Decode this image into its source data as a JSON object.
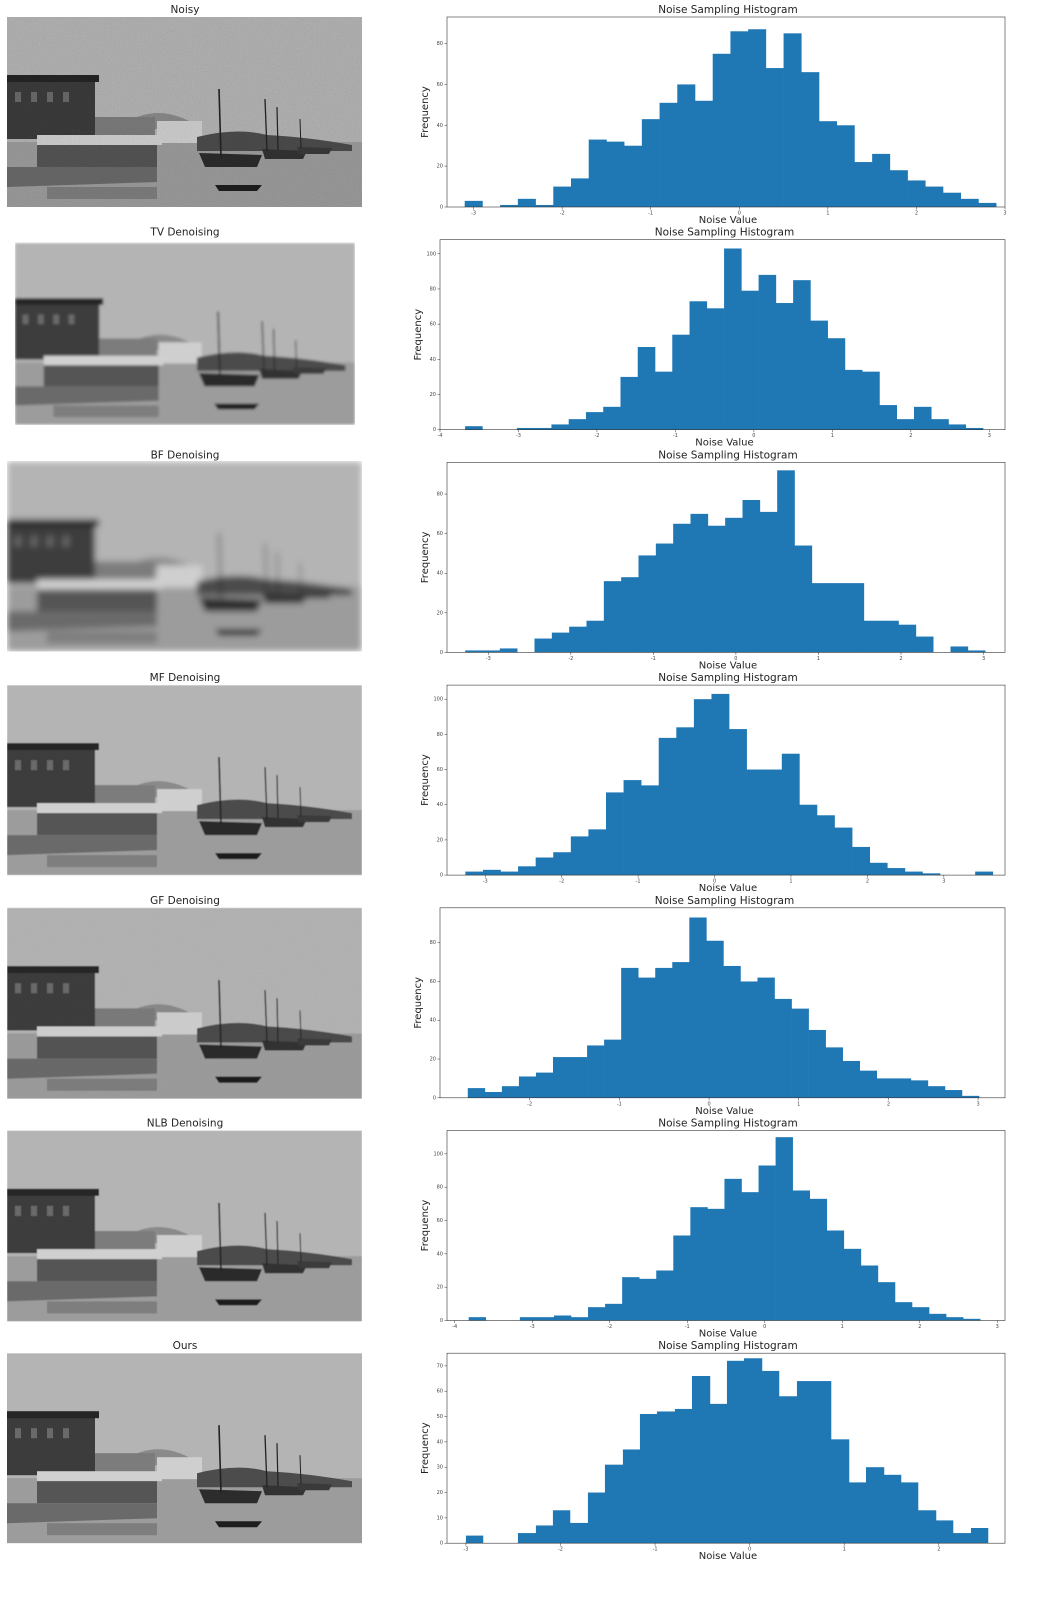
{
  "image_titles": [
    "Noisy",
    "TV Denoising",
    "BF Denoising",
    "MF Denoising",
    "GF Denoising",
    "NLB Denoising",
    "Ours"
  ],
  "chart_data": [
    {
      "type": "histogram",
      "title": "Noise Sampling Histogram",
      "xlabel": "Noise Value",
      "ylabel": "Frequency",
      "color": "#1f77b4",
      "bins": [
        -3.1,
        -2.9,
        -2.7,
        -2.5,
        -2.3,
        -2.1,
        -1.9,
        -1.7,
        -1.5,
        -1.3,
        -1.1,
        -0.9,
        -0.7,
        -0.5,
        -0.3,
        -0.1,
        0.1,
        0.3,
        0.5,
        0.7,
        0.9,
        1.1,
        1.3,
        1.5,
        1.7,
        1.9,
        2.1,
        2.3,
        2.5,
        2.7,
        2.9
      ],
      "values": [
        3,
        0,
        1,
        4,
        1,
        10,
        14,
        33,
        32,
        30,
        43,
        51,
        60,
        52,
        75,
        86,
        87,
        68,
        85,
        66,
        42,
        40,
        22,
        26,
        18,
        13,
        10,
        7,
        4,
        2
      ],
      "xlim": [
        -3.3,
        3.0
      ],
      "xticks": [
        -3,
        -2,
        -1,
        0,
        1,
        2,
        3
      ],
      "ylim": [
        0,
        93
      ],
      "yticks": [
        0,
        20,
        40,
        60,
        80
      ]
    },
    {
      "type": "histogram",
      "title": "Noise Sampling Histogram",
      "xlabel": "Noise Value",
      "ylabel": "Frequency",
      "color": "#1f77b4",
      "bins": [
        -3.68,
        -3.46,
        -3.24,
        -3.02,
        -2.8,
        -2.58,
        -2.36,
        -2.14,
        -1.92,
        -1.7,
        -1.48,
        -1.26,
        -1.04,
        -0.82,
        -0.6,
        -0.38,
        -0.16,
        0.06,
        0.28,
        0.5,
        0.72,
        0.94,
        1.16,
        1.38,
        1.6,
        1.82,
        2.04,
        2.26,
        2.48,
        2.7,
        2.92
      ],
      "values": [
        2,
        0,
        0,
        1,
        1,
        3,
        6,
        10,
        13,
        30,
        47,
        33,
        54,
        73,
        69,
        103,
        79,
        88,
        72,
        85,
        62,
        52,
        34,
        33,
        14,
        6,
        13,
        6,
        3,
        1
      ],
      "xlim": [
        -4,
        3.2
      ],
      "xticks": [
        -4,
        -3,
        -2,
        -1,
        0,
        1,
        2,
        3
      ],
      "ylim": [
        0,
        108
      ],
      "yticks": [
        0,
        20,
        40,
        60,
        80,
        100
      ]
    },
    {
      "type": "histogram",
      "title": "Noise Sampling Histogram",
      "xlabel": "Noise Value",
      "ylabel": "Frequency",
      "color": "#1f77b4",
      "bins": [
        -3.28,
        -3.07,
        -2.86,
        -2.65,
        -2.44,
        -2.23,
        -2.02,
        -1.81,
        -1.6,
        -1.39,
        -1.18,
        -0.97,
        -0.76,
        -0.55,
        -0.34,
        -0.13,
        0.08,
        0.29,
        0.5,
        0.71,
        0.92,
        1.13,
        1.34,
        1.55,
        1.76,
        1.97,
        2.18,
        2.39,
        2.6,
        2.81,
        3.02
      ],
      "values": [
        1,
        1,
        2,
        0,
        7,
        10,
        13,
        16,
        36,
        38,
        49,
        55,
        65,
        70,
        64,
        68,
        77,
        71,
        92,
        54,
        35,
        35,
        35,
        16,
        16,
        14,
        8,
        0,
        3,
        1
      ],
      "xlim": [
        -3.5,
        3.26
      ],
      "xticks": [
        -3,
        -2,
        -1,
        0,
        1,
        2,
        3
      ],
      "ylim": [
        0,
        96
      ],
      "yticks": [
        0,
        20,
        40,
        60,
        80
      ]
    },
    {
      "type": "histogram",
      "title": "Noise Sampling Histogram",
      "xlabel": "Noise Value",
      "ylabel": "Frequency",
      "color": "#1f77b4",
      "bins": [
        -3.26,
        -3.03,
        -2.8,
        -2.57,
        -2.34,
        -2.11,
        -1.88,
        -1.65,
        -1.42,
        -1.19,
        -0.96,
        -0.73,
        -0.5,
        -0.27,
        -0.04,
        0.19,
        0.42,
        0.65,
        0.88,
        1.11,
        1.34,
        1.57,
        1.8,
        2.03,
        2.26,
        2.49,
        2.72,
        2.95,
        3.18,
        3.41,
        3.64
      ],
      "values": [
        2,
        3,
        2,
        5,
        10,
        13,
        22,
        26,
        47,
        54,
        51,
        78,
        84,
        100,
        103,
        83,
        60,
        60,
        69,
        40,
        34,
        27,
        16,
        7,
        4,
        2,
        1,
        0,
        0,
        2
      ],
      "xlim": [
        -3.5,
        3.8
      ],
      "xticks": [
        -3,
        -2,
        -1,
        0,
        1,
        2,
        3
      ],
      "ylim": [
        0,
        108
      ],
      "yticks": [
        0,
        20,
        40,
        60,
        80,
        100
      ]
    },
    {
      "type": "histogram",
      "title": "Noise Sampling Histogram",
      "xlabel": "Noise Value",
      "ylabel": "Frequency",
      "color": "#1f77b4",
      "bins": [
        -2.69,
        -2.5,
        -2.31,
        -2.12,
        -1.93,
        -1.74,
        -1.55,
        -1.36,
        -1.17,
        -0.98,
        -0.79,
        -0.6,
        -0.41,
        -0.22,
        -0.03,
        0.16,
        0.35,
        0.54,
        0.73,
        0.92,
        1.11,
        1.3,
        1.49,
        1.68,
        1.87,
        2.06,
        2.25,
        2.44,
        2.63,
        2.82,
        3.01
      ],
      "values": [
        5,
        3,
        6,
        11,
        13,
        21,
        21,
        27,
        30,
        67,
        62,
        67,
        70,
        93,
        81,
        68,
        60,
        62,
        51,
        46,
        35,
        26,
        19,
        14,
        10,
        10,
        9,
        6,
        4,
        1
      ],
      "xlim": [
        -3,
        3.3
      ],
      "xticks": [
        -2,
        -1,
        0,
        1,
        2,
        3
      ],
      "ylim": [
        0,
        98
      ],
      "yticks": [
        0,
        20,
        40,
        60,
        80
      ]
    },
    {
      "type": "histogram",
      "title": "Noise Sampling Histogram",
      "xlabel": "Noise Value",
      "ylabel": "Frequency",
      "color": "#1f77b4",
      "bins": [
        -3.82,
        -3.6,
        -3.38,
        -3.16,
        -2.94,
        -2.72,
        -2.5,
        -2.28,
        -2.06,
        -1.84,
        -1.62,
        -1.4,
        -1.18,
        -0.96,
        -0.74,
        -0.52,
        -0.3,
        -0.08,
        0.14,
        0.36,
        0.58,
        0.8,
        1.02,
        1.24,
        1.46,
        1.68,
        1.9,
        2.12,
        2.34,
        2.56,
        2.78
      ],
      "values": [
        2,
        0,
        0,
        2,
        2,
        3,
        2,
        8,
        10,
        26,
        25,
        30,
        51,
        68,
        67,
        85,
        77,
        93,
        110,
        78,
        73,
        54,
        43,
        33,
        23,
        11,
        8,
        4,
        2,
        1
      ],
      "xlim": [
        -4.1,
        3.1
      ],
      "xticks": [
        -4,
        -3,
        -2,
        -1,
        0,
        1,
        2,
        3
      ],
      "ylim": [
        0,
        114
      ],
      "yticks": [
        0,
        20,
        40,
        60,
        80,
        100
      ]
    },
    {
      "type": "histogram",
      "title": "Noise Sampling Histogram",
      "xlabel": "Noise Value",
      "ylabel": "Frequency",
      "color": "#1f77b4",
      "bins": [
        -3,
        -2.82,
        -2.63,
        -2.45,
        -2.26,
        -2.08,
        -1.9,
        -1.71,
        -1.53,
        -1.34,
        -1.16,
        -0.98,
        -0.79,
        -0.61,
        -0.42,
        -0.24,
        -0.06,
        0.13,
        0.31,
        0.5,
        0.68,
        0.86,
        1.05,
        1.23,
        1.42,
        1.6,
        1.78,
        1.97,
        2.15,
        2.34,
        2.52
      ],
      "values": [
        3,
        0,
        0,
        4,
        7,
        13,
        8,
        20,
        31,
        37,
        51,
        52,
        53,
        66,
        55,
        72,
        73,
        68,
        58,
        64,
        64,
        41,
        24,
        30,
        27,
        24,
        13,
        9,
        4,
        6
      ],
      "xlim": [
        -3.2,
        2.7
      ],
      "xticks": [
        -3,
        -2,
        -1,
        0,
        1,
        2
      ],
      "ylim": [
        0,
        75
      ],
      "yticks": [
        0,
        10,
        20,
        30,
        40,
        50,
        60,
        70
      ]
    }
  ]
}
